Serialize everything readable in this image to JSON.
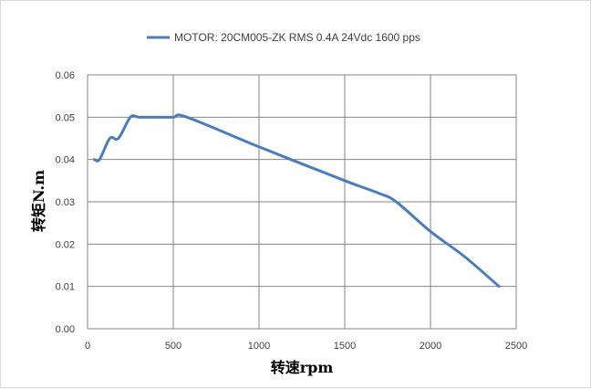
{
  "chart_data": {
    "type": "line",
    "title": "",
    "xlabel": "转速rpm",
    "ylabel": "转矩N.m",
    "xlim": [
      0,
      2500
    ],
    "ylim": [
      0,
      0.06
    ],
    "x_ticks": [
      "0",
      "500",
      "1000",
      "1500",
      "2000",
      "2500"
    ],
    "y_ticks": [
      "0.00",
      "0.01",
      "0.02",
      "0.03",
      "0.04",
      "0.05",
      "0.06"
    ],
    "grid": true,
    "legend_position": "top",
    "series": [
      {
        "name": "MOTOR: 20CM005-ZK RMS 0.4A  24Vdc  1600 pps",
        "color": "#4a7ebb",
        "x": [
          40,
          70,
          130,
          180,
          250,
          300,
          400,
          500,
          580,
          1000,
          1500,
          1700,
          1800,
          2000,
          2200,
          2400
        ],
        "y": [
          0.04,
          0.04,
          0.045,
          0.045,
          0.05,
          0.05,
          0.05,
          0.05,
          0.05,
          0.043,
          0.035,
          0.032,
          0.03,
          0.023,
          0.017,
          0.01
        ]
      }
    ]
  }
}
